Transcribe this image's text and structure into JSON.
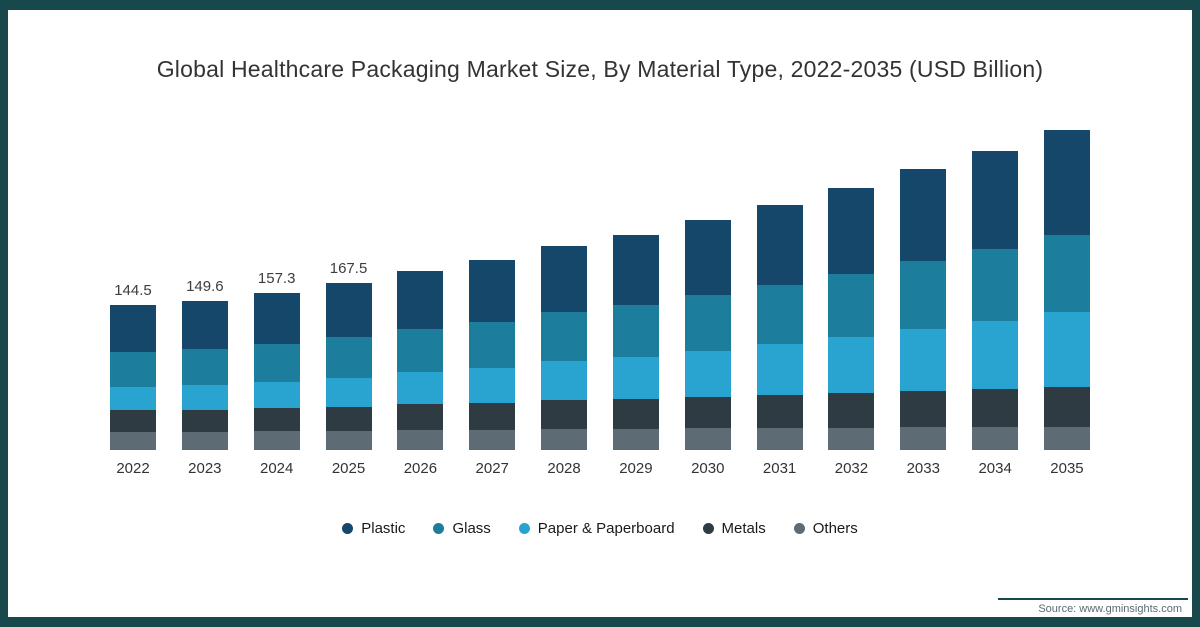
{
  "frame": {
    "border_color": "#17494c",
    "background_color": "#ffffff"
  },
  "title": "Global Healthcare Packaging Market Size, By Material Type, 2022-2035 (USD Billion)",
  "source_note": "Source: www.gminsights.com",
  "chart_data": {
    "type": "bar",
    "stacked": true,
    "title": "Global Healthcare Packaging Market Size, By Material Type, 2022-2035 (USD Billion)",
    "unit": "USD Billion",
    "grid": false,
    "legend_position": "bottom",
    "axis_visible": {
      "x_labels": true,
      "y_labels": false
    },
    "ylim": [
      0,
      330
    ],
    "categories": [
      "2022",
      "2023",
      "2024",
      "2025",
      "2026",
      "2027",
      "2028",
      "2029",
      "2030",
      "2031",
      "2032",
      "2033",
      "2034",
      "2035"
    ],
    "value_labels": [
      "144.5",
      "149.6",
      "157.3",
      "167.5",
      "",
      "",
      "",
      "",
      "",
      "",
      "",
      "",
      "",
      ""
    ],
    "totals": [
      144.5,
      149.6,
      157.3,
      167.5,
      178.1,
      190.2,
      203.8,
      214.9,
      229.6,
      245.2,
      262.4,
      280.1,
      298.6,
      320.0
    ],
    "series": [
      {
        "name": "Plastic",
        "color": "#14476a",
        "values": [
          46.5,
          48.3,
          50.9,
          54.3,
          57.8,
          61.9,
          66.4,
          70.1,
          75.0,
          80.2,
          85.9,
          91.8,
          98.0,
          105.2
        ]
      },
      {
        "name": "Glass",
        "color": "#1d7d9c",
        "values": [
          35.0,
          36.3,
          38.2,
          40.6,
          43.2,
          46.1,
          49.3,
          52.0,
          55.5,
          59.2,
          63.3,
          67.5,
          71.9,
          76.9
        ]
      },
      {
        "name": "Paper & Paperboard",
        "color": "#29a3d0",
        "values": [
          23.0,
          24.5,
          26.4,
          28.9,
          31.7,
          34.9,
          38.6,
          42.0,
          46.3,
          51.0,
          56.2,
          61.9,
          68.0,
          75.2
        ]
      },
      {
        "name": "Metals",
        "color": "#2f3b43",
        "values": [
          22.0,
          22.4,
          23.2,
          24.4,
          25.6,
          26.9,
          28.5,
          29.7,
          31.3,
          32.9,
          34.7,
          36.4,
          38.0,
          39.7
        ]
      },
      {
        "name": "Others",
        "color": "#5d6b74",
        "values": [
          18.0,
          18.1,
          18.6,
          19.3,
          19.8,
          20.4,
          21.0,
          21.1,
          21.5,
          21.9,
          22.3,
          22.5,
          22.7,
          23.0
        ]
      }
    ]
  }
}
